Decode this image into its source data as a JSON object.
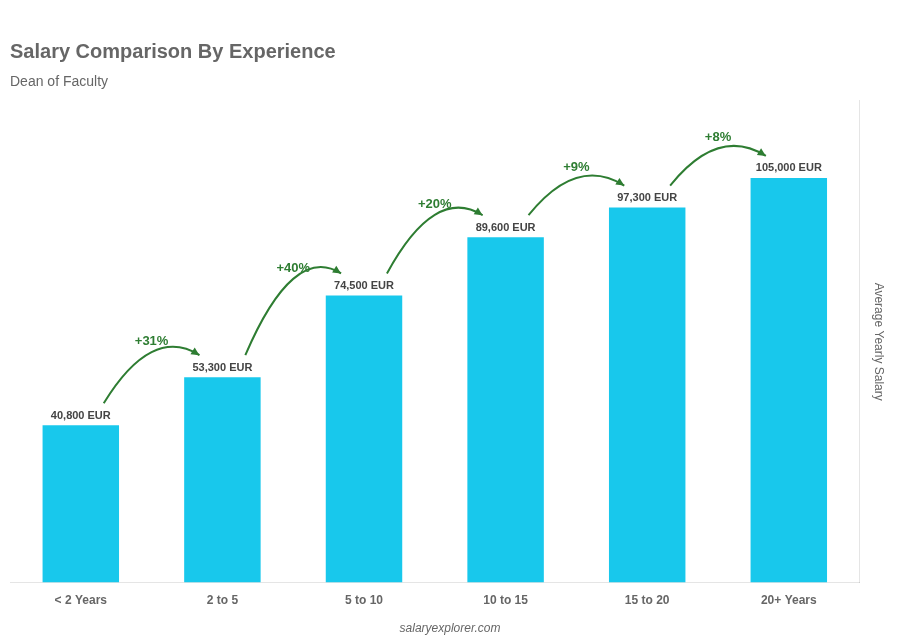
{
  "chart_data": {
    "type": "bar",
    "title": "Salary Comparison By Experience",
    "subtitle": "Dean of Faculty",
    "categories": [
      "< 2 Years",
      "2 to 5",
      "5 to 10",
      "10 to 15",
      "15 to 20",
      "20+ Years"
    ],
    "values": [
      40800,
      53300,
      74500,
      89600,
      97300,
      105000
    ],
    "value_labels": [
      "40,800 EUR",
      "53,300 EUR",
      "74,500 EUR",
      "89,600 EUR",
      "97,300 EUR",
      "105,000 EUR"
    ],
    "data_labels": true,
    "color": "#18c8ec",
    "y_label": "Average Yearly Salary",
    "ylim": [
      0,
      125000
    ],
    "tick_labels": "x",
    "grid": false,
    "legend": false,
    "annotations": [
      {
        "text": "+31%",
        "from": "< 2 Years",
        "to": "2 to 5"
      },
      {
        "text": "+40%",
        "from": "2 to 5",
        "to": "5 to 10"
      },
      {
        "text": "+20%",
        "from": "5 to 10",
        "to": "10 to 15"
      },
      {
        "text": "+9%",
        "from": "10 to 15",
        "to": "15 to 20"
      },
      {
        "text": "+8%",
        "from": "15 to 20",
        "to": "20+ Years"
      },
      {
        "text": "salaryexplorer.com"
      }
    ]
  }
}
